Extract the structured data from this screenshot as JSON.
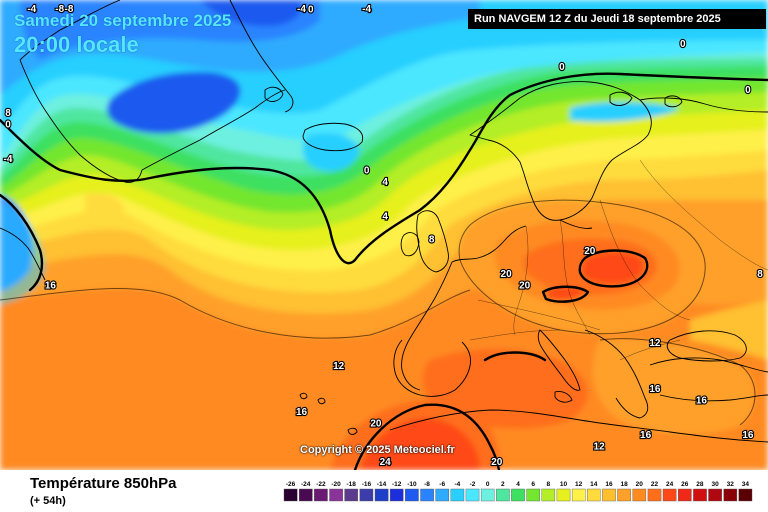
{
  "header": {
    "date": "Samedi 20 septembre 2025",
    "time": "20:00 locale",
    "run": "Run NAVGEM 12 Z du Jeudi 18 septembre 2025"
  },
  "footer": {
    "parameter": "Température 850hPa",
    "lead_time": "(+ 54h)"
  },
  "copyright": "Copyright © 2025 Meteociel.fr",
  "legend": {
    "values": [
      "-26",
      "-24",
      "-22",
      "-20",
      "-18",
      "-16",
      "-14",
      "-12",
      "-10",
      "-8",
      "-6",
      "-4",
      "-2",
      "0",
      "2",
      "4",
      "6",
      "8",
      "10",
      "12",
      "14",
      "16",
      "18",
      "20",
      "22",
      "24",
      "26",
      "28",
      "30",
      "32",
      "34"
    ],
    "colors": [
      "#2a0033",
      "#4a0a52",
      "#6a1a73",
      "#8a3398",
      "#5c3b8f",
      "#3c3caa",
      "#1e3fc8",
      "#1d2fdc",
      "#1e5aef",
      "#2b84ff",
      "#2eaaff",
      "#28cfff",
      "#4be6ff",
      "#6ef0e0",
      "#4fe6a0",
      "#3de060",
      "#73e62e",
      "#b4ee28",
      "#e6f01e",
      "#fff04a",
      "#ffdc3c",
      "#ffc030",
      "#ffa02a",
      "#ff8a20",
      "#ff6e1a",
      "#ff4818",
      "#f02818",
      "#d01010",
      "#b00810",
      "#8a0008",
      "#5a0004"
    ]
  },
  "map_labels": [
    {
      "text": "-8",
      "lon": -41,
      "lat": 80
    },
    {
      "text": "-4",
      "lon": -15,
      "lat": 81
    },
    {
      "text": "-4",
      "lon": -44,
      "lat": 77
    },
    {
      "text": "-8",
      "lon": -40,
      "lat": 72
    },
    {
      "text": "-4",
      "lon": -8,
      "lat": 72
    },
    {
      "text": "0",
      "lon": -14,
      "lat": 70
    },
    {
      "text": "-4",
      "lon": -55,
      "lat": 57
    },
    {
      "text": "0",
      "lon": -58,
      "lat": 60
    },
    {
      "text": "8",
      "lon": -48,
      "lat": 61
    },
    {
      "text": "16",
      "lon": -42,
      "lat": 46
    },
    {
      "text": "0",
      "lon": -8,
      "lat": 56
    },
    {
      "text": "4",
      "lon": -6,
      "lat": 55
    },
    {
      "text": "4",
      "lon": -6,
      "lat": 52
    },
    {
      "text": "8",
      "lon": -1,
      "lat": 50
    },
    {
      "text": "20",
      "lon": 16,
      "lat": 49
    },
    {
      "text": "20",
      "lon": 7,
      "lat": 47
    },
    {
      "text": "20",
      "lon": 9,
      "lat": 46
    },
    {
      "text": "0",
      "lon": 26,
      "lat": 67
    },
    {
      "text": "0",
      "lon": 13,
      "lat": 65
    },
    {
      "text": "0",
      "lon": 33,
      "lat": 63
    },
    {
      "text": "8",
      "lon": 38,
      "lat": 47
    },
    {
      "text": "12",
      "lon": -11,
      "lat": 39
    },
    {
      "text": "16",
      "lon": -15,
      "lat": 35
    },
    {
      "text": "20",
      "lon": -7,
      "lat": 34
    },
    {
      "text": "24",
      "lon": -6,
      "lat": 30
    },
    {
      "text": "20",
      "lon": 6,
      "lat": 30
    },
    {
      "text": "12",
      "lon": 23,
      "lat": 41
    },
    {
      "text": "16",
      "lon": 23,
      "lat": 37
    },
    {
      "text": "16",
      "lon": 28,
      "lat": 36
    },
    {
      "text": "16",
      "lon": 22,
      "lat": 33
    },
    {
      "text": "16",
      "lon": 33,
      "lat": 33
    },
    {
      "text": "12",
      "lon": 17,
      "lat": 32
    }
  ],
  "colors": {
    "run_banner_bg": "#000000",
    "title_text": "#55e6ff",
    "contour": "#000000",
    "coast": "#000000"
  }
}
